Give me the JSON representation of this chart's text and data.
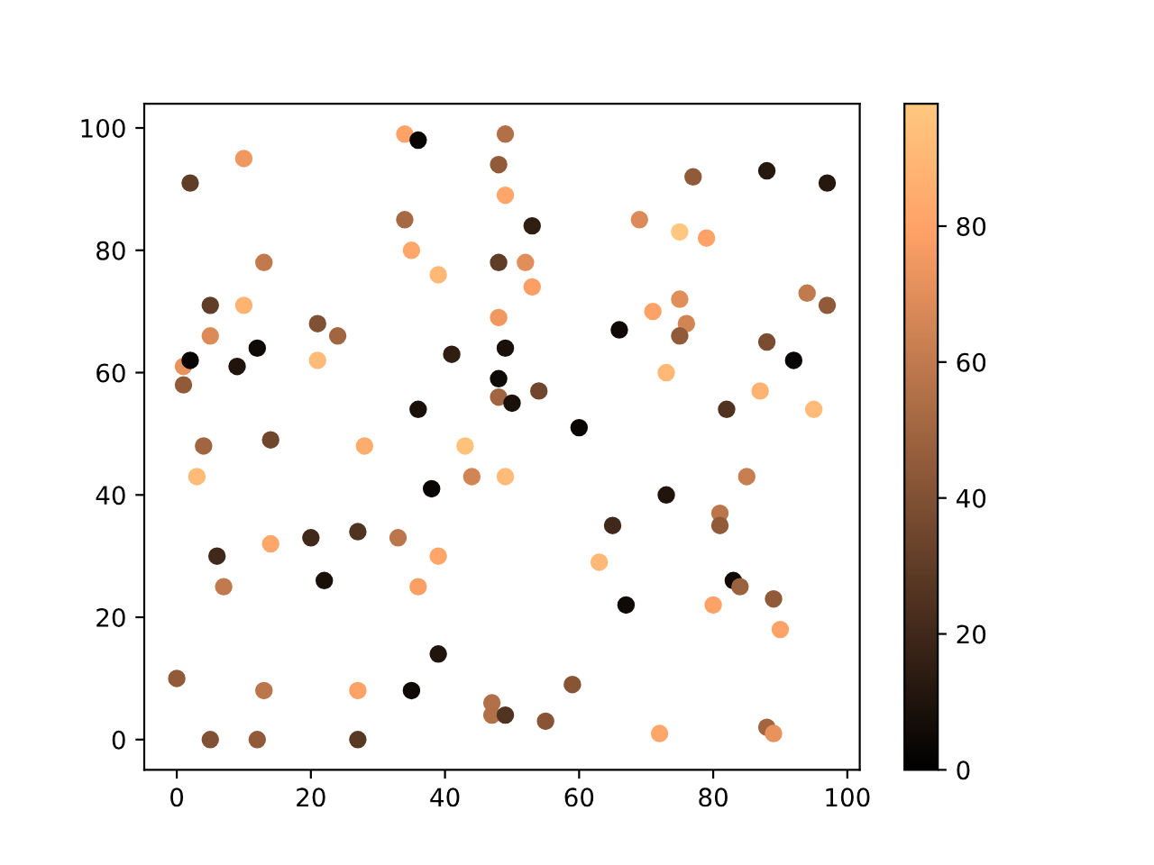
{
  "chart_data": {
    "type": "scatter",
    "marker": "circle",
    "x": [
      2,
      10,
      34,
      36,
      48,
      49,
      34,
      35,
      39,
      13,
      5,
      10,
      5,
      21,
      24,
      12,
      9,
      1,
      2,
      1,
      21,
      36,
      41,
      48,
      48,
      48,
      48,
      50,
      54,
      49,
      49,
      53,
      52,
      53,
      60,
      66,
      69,
      75,
      79,
      77,
      88,
      97,
      71,
      75,
      76,
      75,
      94,
      97,
      88,
      92,
      73,
      87,
      95,
      82,
      4,
      14,
      28,
      43,
      3,
      44,
      38,
      6,
      14,
      20,
      27,
      33,
      39,
      7,
      22,
      36,
      39,
      0,
      13,
      27,
      35,
      5,
      12,
      27,
      47,
      47,
      49,
      55,
      59,
      72,
      88,
      89,
      49,
      85,
      73,
      65,
      81,
      81,
      63,
      83,
      84,
      89,
      80,
      90,
      67
    ],
    "values": [
      91,
      95,
      99,
      98,
      94,
      99,
      85,
      80,
      76,
      78,
      71,
      71,
      66,
      68,
      66,
      64,
      61,
      61,
      62,
      58,
      62,
      54,
      63,
      78,
      69,
      59,
      56,
      55,
      57,
      64,
      89,
      84,
      78,
      74,
      51,
      67,
      85,
      83,
      82,
      92,
      93,
      91,
      70,
      72,
      68,
      66,
      73,
      71,
      65,
      62,
      60,
      57,
      54,
      54,
      48,
      49,
      48,
      48,
      43,
      43,
      41,
      30,
      32,
      33,
      34,
      33,
      30,
      25,
      26,
      25,
      14,
      10,
      8,
      8,
      8,
      0,
      0,
      0,
      6,
      4,
      4,
      3,
      9,
      1,
      2,
      1,
      43,
      43,
      40,
      35,
      37,
      35,
      29,
      26,
      25,
      23,
      22,
      18,
      22
    ],
    "cvalues": [
      30,
      75,
      80,
      3,
      45,
      55,
      52,
      82,
      90,
      60,
      30,
      88,
      68,
      40,
      50,
      5,
      10,
      72,
      3,
      45,
      92,
      8,
      15,
      30,
      75,
      5,
      50,
      8,
      35,
      8,
      82,
      15,
      70,
      78,
      3,
      5,
      68,
      98,
      80,
      45,
      12,
      12,
      80,
      70,
      65,
      45,
      60,
      45,
      38,
      3,
      90,
      88,
      92,
      25,
      50,
      35,
      85,
      95,
      92,
      65,
      3,
      20,
      82,
      20,
      25,
      58,
      82,
      60,
      8,
      78,
      10,
      45,
      58,
      80,
      5,
      40,
      45,
      28,
      55,
      55,
      25,
      42,
      42,
      82,
      50,
      72,
      92,
      62,
      10,
      20,
      58,
      45,
      90,
      5,
      48,
      45,
      80,
      80,
      5
    ],
    "xlim": [
      -4.85,
      101.85
    ],
    "ylim": [
      -4.95,
      103.95
    ],
    "xticks": [
      0,
      20,
      40,
      60,
      80,
      100
    ],
    "yticks": [
      0,
      20,
      40,
      60,
      80,
      100
    ],
    "clim": [
      0,
      98
    ],
    "cticks": [
      0,
      20,
      40,
      60,
      80
    ]
  }
}
